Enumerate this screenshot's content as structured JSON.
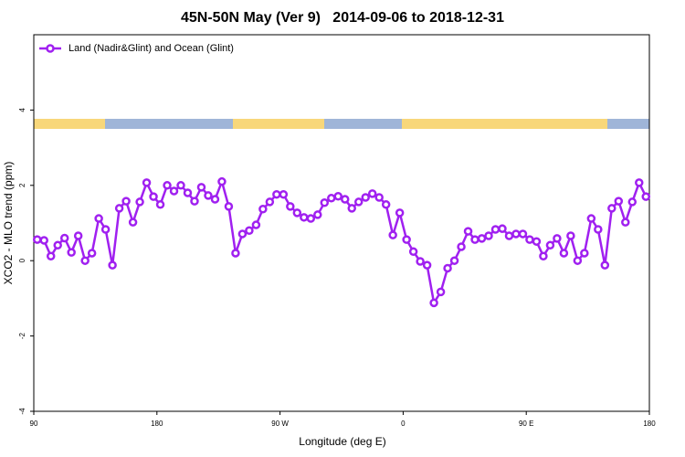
{
  "chart_data": {
    "type": "line",
    "title": "45N-50N May (Ver 9)   2014-09-06 to 2018-12-31",
    "x_label": "Longitude (deg E)",
    "y_label": "XCO2 - MLO trend (ppm)",
    "legend_position": "top-left",
    "xlim": [
      90,
      540
    ],
    "ylim": [
      -4,
      6
    ],
    "xticks": [
      90,
      180,
      {
        "value": 270,
        "label": "90 W"
      },
      {
        "value": 360,
        "label": "0"
      },
      {
        "value": 450,
        "label": "90 E"
      },
      {
        "value": 540,
        "label": "180"
      }
    ],
    "yticks": [
      -4,
      -2,
      0,
      2,
      4
    ],
    "x": [
      92.5,
      97.5,
      102.5,
      107.5,
      112.5,
      117.5,
      122.5,
      127.5,
      132.5,
      137.5,
      142.5,
      147.5,
      152.5,
      157.5,
      162.5,
      167.5,
      172.5,
      177.5,
      182.5,
      187.5,
      192.5,
      197.5,
      202.5,
      207.5,
      212.5,
      217.5,
      222.5,
      227.5,
      232.5,
      237.5,
      242.5,
      247.5,
      252.5,
      257.5,
      262.5,
      267.5,
      272.5,
      277.5,
      282.5,
      287.5,
      292.5,
      297.5,
      302.5,
      307.5,
      312.5,
      317.5,
      322.5,
      327.5,
      332.5,
      337.5,
      342.5,
      347.5,
      352.5,
      357.5,
      362.5,
      367.5,
      372.5,
      377.5,
      382.5,
      387.5,
      392.5,
      397.5,
      402.5,
      407.5,
      412.5,
      417.5,
      422.5,
      427.5,
      432.5,
      437.5,
      442.5,
      447.5,
      452.5,
      457.5,
      462.5,
      467.5,
      472.5,
      477.5,
      482.5,
      487.5,
      492.5,
      497.5,
      502.5,
      507.5,
      512.5,
      517.5,
      522.5,
      527.5,
      532.5,
      537.5
    ],
    "series": [
      {
        "name": "Land (Nadir&Glint) and Ocean (Glint)",
        "color": "#a020f0",
        "values": [
          0.56,
          0.54,
          0.12,
          0.41,
          0.6,
          0.22,
          0.66,
          0.0,
          0.2,
          1.12,
          0.83,
          -0.12,
          1.39,
          1.58,
          1.02,
          1.56,
          2.07,
          1.7,
          1.49,
          2.0,
          1.85,
          2.0,
          1.8,
          1.58,
          1.95,
          1.73,
          1.63,
          2.1,
          1.44,
          0.2,
          0.71,
          0.8,
          0.95,
          1.37,
          1.56,
          1.76,
          1.76,
          1.44,
          1.27,
          1.15,
          1.12,
          1.22,
          1.54,
          1.66,
          1.71,
          1.63,
          1.39,
          1.56,
          1.68,
          1.78,
          1.68,
          1.49,
          0.68,
          1.27,
          0.56,
          0.24,
          -0.02,
          -0.12,
          -1.12,
          -0.83,
          -0.2,
          0.0,
          0.37,
          0.78,
          0.56,
          0.59,
          0.66,
          0.83,
          0.85,
          0.66,
          0.71,
          0.71,
          0.56,
          0.51,
          0.12,
          0.41,
          0.59,
          0.2,
          0.66,
          0.0,
          0.2,
          1.12,
          0.83,
          -0.12,
          1.39,
          1.58,
          1.02,
          1.56,
          2.07,
          1.7
        ]
      }
    ]
  }
}
